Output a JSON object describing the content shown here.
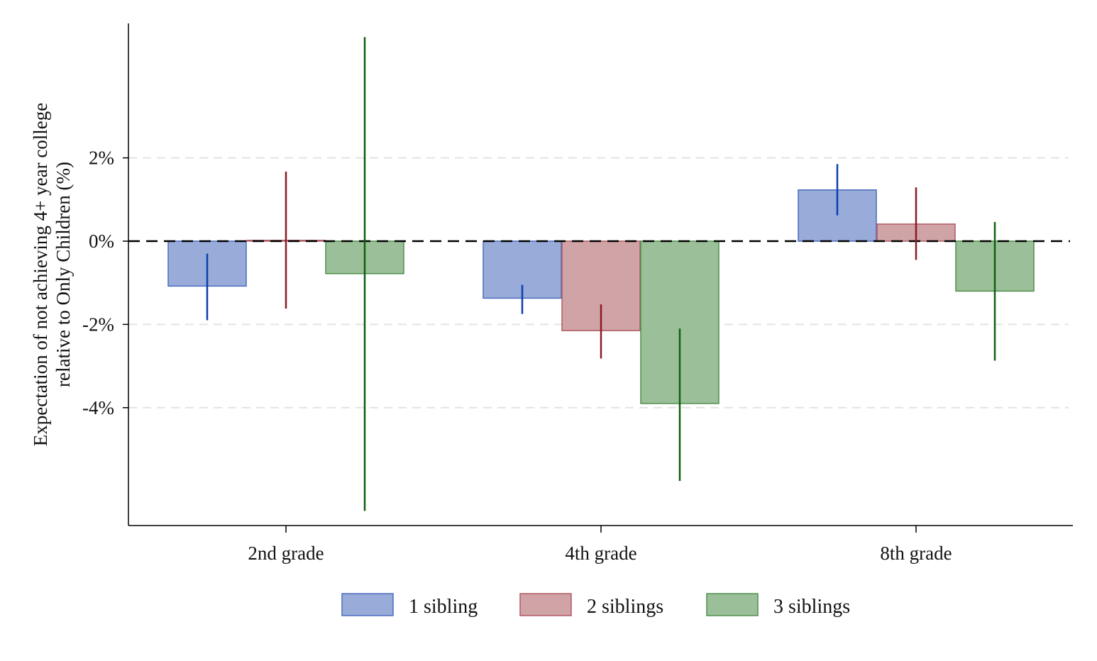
{
  "chart_data": {
    "type": "bar",
    "title": "",
    "xlabel": "",
    "ylabel_lines": [
      "Expectation of not achieving 4+ year college",
      "relative to Only Children (%)"
    ],
    "ylim": [
      -6.8,
      5.2
    ],
    "yticks": [
      2,
      0,
      -2,
      -4
    ],
    "ytick_labels": [
      "2%",
      "0%",
      "-2%",
      "-4%"
    ],
    "grid": "horizontal dashed",
    "reference_line": 0,
    "legend_position": "bottom-center",
    "categories": [
      "2nd grade",
      "4th grade",
      "8th grade"
    ],
    "series": [
      {
        "name": "1 sibling",
        "values": [
          -1.08,
          -1.37,
          1.23
        ],
        "ci_low": [
          -1.9,
          -1.75,
          0.62
        ],
        "ci_high": [
          -0.3,
          -1.05,
          1.85
        ],
        "fill": "#98abd9",
        "stroke": "#4a6cbf",
        "ci_color": "#0a3fae"
      },
      {
        "name": "2 siblings",
        "values": [
          0.02,
          -2.15,
          0.41
        ],
        "ci_low": [
          -1.62,
          -2.82,
          -0.45
        ],
        "ci_high": [
          1.67,
          -1.52,
          1.29
        ],
        "fill": "#d0a3a6",
        "stroke": "#b05a62",
        "ci_color": "#8b1a26"
      },
      {
        "name": "3 siblings",
        "values": [
          -0.78,
          -3.9,
          -1.2
        ],
        "ci_low": [
          -6.48,
          -5.76,
          -2.87
        ],
        "ci_high": [
          4.9,
          -2.1,
          0.46
        ],
        "fill": "#9bbf98",
        "stroke": "#4f8f4b",
        "ci_color": "#0f5f0f"
      }
    ]
  }
}
